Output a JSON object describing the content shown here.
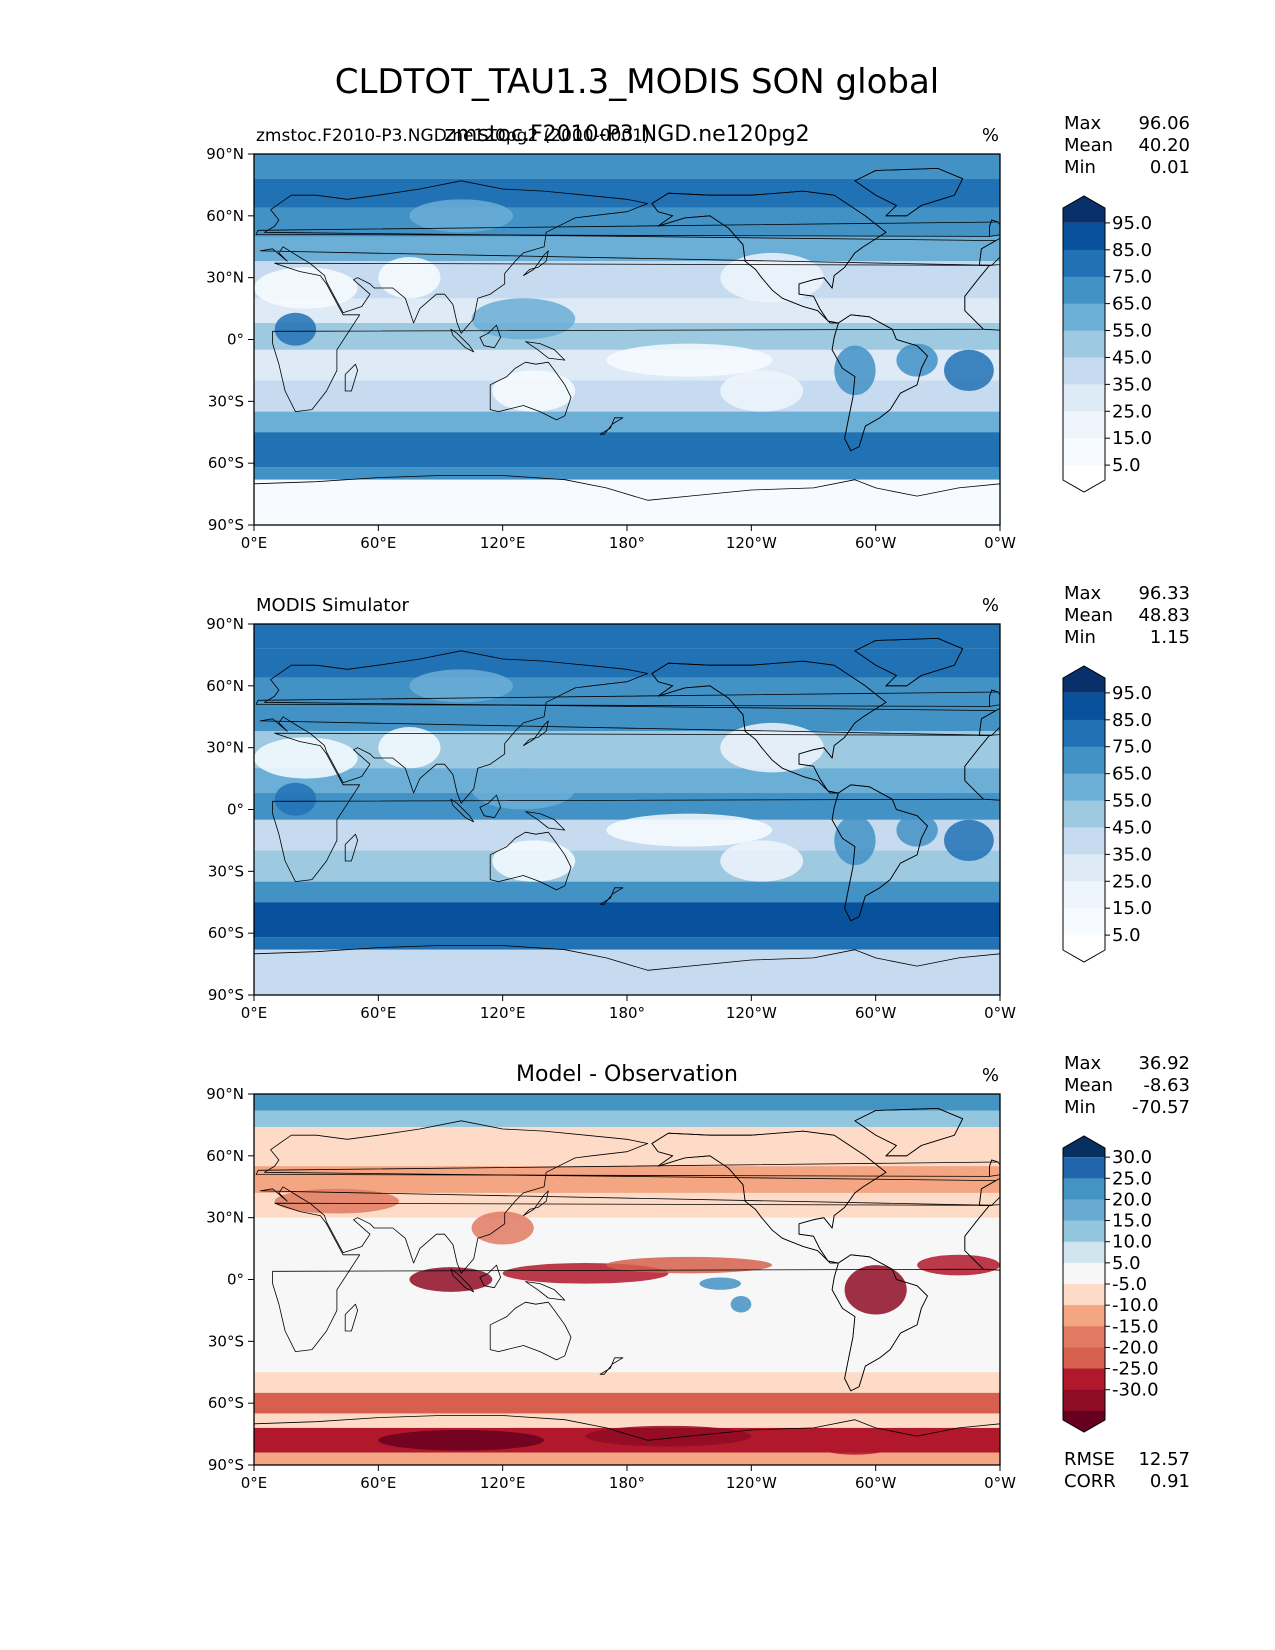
{
  "figure": {
    "title": "CLDTOT_TAU1.3_MODIS SON global"
  },
  "panels": [
    {
      "id": "test",
      "title_left": "zmstoc.F2010-P3.NGD.ne120pg2 (2000-0001)",
      "title_center": "zmstoc.F2010-P3.NGD.ne120pg2",
      "units": "%",
      "stats": [
        {
          "label": "Max",
          "value": "96.06"
        },
        {
          "label": "Mean",
          "value": "40.20"
        },
        {
          "label": "Min",
          "value": "0.01"
        }
      ],
      "colorbar": {
        "labels": [
          "95.0",
          "85.0",
          "75.0",
          "65.0",
          "55.0",
          "45.0",
          "35.0",
          "25.0",
          "15.0",
          "5.0"
        ],
        "colors_top_to_bottom": [
          "#08306b",
          "#08519c",
          "#2171b5",
          "#4292c6",
          "#6baed6",
          "#9ecae1",
          "#c6dbef",
          "#deebf7",
          "#eef5fc",
          "#f7fbff",
          "#ffffff"
        ]
      }
    },
    {
      "id": "reference",
      "title_left": "MODIS Simulator",
      "title_center": "",
      "units": "%",
      "stats": [
        {
          "label": "Max",
          "value": "96.33"
        },
        {
          "label": "Mean",
          "value": "48.83"
        },
        {
          "label": "Min",
          "value": "1.15"
        }
      ],
      "colorbar": {
        "labels": [
          "95.0",
          "85.0",
          "75.0",
          "65.0",
          "55.0",
          "45.0",
          "35.0",
          "25.0",
          "15.0",
          "5.0"
        ],
        "colors_top_to_bottom": [
          "#08306b",
          "#08519c",
          "#2171b5",
          "#4292c6",
          "#6baed6",
          "#9ecae1",
          "#c6dbef",
          "#deebf7",
          "#eef5fc",
          "#f7fbff",
          "#ffffff"
        ]
      }
    },
    {
      "id": "diff",
      "title_left": "",
      "title_center": "Model - Observation",
      "units": "%",
      "stats": [
        {
          "label": "Max",
          "value": "36.92"
        },
        {
          "label": "Mean",
          "value": "-8.63"
        },
        {
          "label": "Min",
          "value": "-70.57"
        }
      ],
      "extra_stats": [
        {
          "label": "RMSE",
          "value": "12.57"
        },
        {
          "label": "CORR",
          "value": "0.91"
        }
      ],
      "colorbar": {
        "labels": [
          "30.0",
          "25.0",
          "20.0",
          "15.0",
          "10.0",
          "5.0",
          "-5.0",
          "-10.0",
          "-15.0",
          "-20.0",
          "-25.0",
          "-30.0"
        ],
        "colors_top_to_bottom": [
          "#053061",
          "#2166ac",
          "#4393c3",
          "#6aa9d2",
          "#92c5de",
          "#d1e5f0",
          "#f7f7f7",
          "#fddbc7",
          "#f4a582",
          "#e07a62",
          "#d6604d",
          "#b2182b",
          "#8e0c25",
          "#67001f"
        ]
      }
    }
  ],
  "axes": {
    "x_ticks": [
      "0°E",
      "60°E",
      "120°E",
      "180°",
      "120°W",
      "60°W",
      "0°W"
    ],
    "y_ticks": [
      "90°N",
      "60°N",
      "30°N",
      "0°",
      "30°S",
      "60°S",
      "90°S"
    ],
    "x_range_deg": [
      0,
      360
    ],
    "y_range_deg": [
      -90,
      90
    ]
  },
  "chart_data": [
    {
      "type": "heatmap",
      "name": "zmstoc.F2010-P3.NGD.ne120pg2",
      "units": "%",
      "xlim": [
        0,
        360
      ],
      "ylim": [
        -90,
        90
      ],
      "levels": [
        5,
        15,
        25,
        35,
        45,
        55,
        65,
        75,
        85,
        95
      ],
      "max": 96.06,
      "mean": 40.2,
      "min": 0.01
    },
    {
      "type": "heatmap",
      "name": "MODIS Simulator",
      "units": "%",
      "xlim": [
        0,
        360
      ],
      "ylim": [
        -90,
        90
      ],
      "levels": [
        5,
        15,
        25,
        35,
        45,
        55,
        65,
        75,
        85,
        95
      ],
      "max": 96.33,
      "mean": 48.83,
      "min": 1.15
    },
    {
      "type": "heatmap",
      "name": "Model - Observation",
      "units": "%",
      "xlim": [
        0,
        360
      ],
      "ylim": [
        -90,
        90
      ],
      "levels": [
        -30,
        -25,
        -20,
        -15,
        -10,
        -5,
        5,
        10,
        15,
        20,
        25,
        30
      ],
      "max": 36.92,
      "mean": -8.63,
      "min": -70.57,
      "rmse": 12.57,
      "corr": 0.91
    }
  ]
}
